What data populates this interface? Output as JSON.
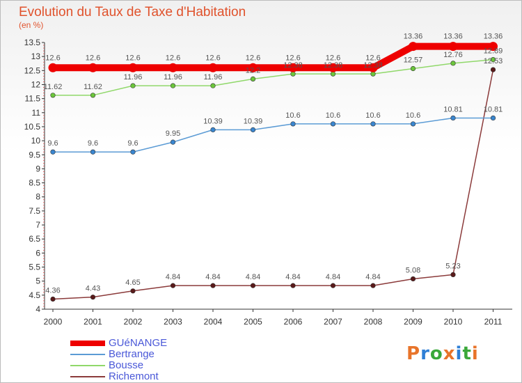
{
  "title": "Evolution du Taux de Taxe d'Habitation",
  "subtitle": "(en %)",
  "logo": {
    "text": "Proxiti",
    "colors": [
      "#e8742a",
      "#2f7fd6",
      "#3aa83a",
      "#e8742a",
      "#2f7fd6",
      "#3aa83a",
      "#e8742a"
    ]
  },
  "chart_data": {
    "type": "line",
    "x": [
      "2000",
      "2001",
      "2002",
      "2003",
      "2004",
      "2005",
      "2006",
      "2007",
      "2008",
      "2009",
      "2010",
      "2011"
    ],
    "ylim": [
      4,
      13.5
    ],
    "yticks": [
      "4",
      "4.5",
      "5",
      "5.5",
      "6",
      "6.5",
      "7",
      "7.5",
      "8",
      "8.5",
      "9",
      "9.5",
      "10",
      "10.5",
      "11",
      "11.5",
      "12",
      "12.5",
      "13",
      "13.5"
    ],
    "grid": false,
    "legend_position": "bottom-left",
    "series": [
      {
        "name": "GUéNANGE",
        "color": "#ee0000",
        "width": 10,
        "values": [
          12.6,
          12.6,
          12.6,
          12.6,
          12.6,
          12.6,
          12.6,
          12.6,
          12.6,
          13.36,
          13.36,
          13.36
        ],
        "labels": [
          "12.6",
          "12.6",
          "12.6",
          "12.6",
          "12.6",
          "12.6",
          "12.6",
          "12.6",
          "12.6",
          "13.36",
          "13.36",
          "13.36"
        ]
      },
      {
        "name": "Bertrange",
        "color": "#5b9bd5",
        "width": 1.5,
        "dot": "#3a86cf",
        "values": [
          9.6,
          9.6,
          9.6,
          9.95,
          10.39,
          10.39,
          10.6,
          10.6,
          10.6,
          10.6,
          10.81,
          10.81
        ],
        "labels": [
          "9.6",
          "9.6",
          "9.6",
          "9.95",
          "10.39",
          "10.39",
          "10.6",
          "10.6",
          "10.6",
          "10.6",
          "10.81",
          "10.81"
        ]
      },
      {
        "name": "Bousse",
        "color": "#90d86a",
        "width": 1.5,
        "dot": "#6cc63c",
        "values": [
          11.62,
          11.62,
          11.96,
          11.96,
          11.96,
          12.2,
          12.38,
          12.38,
          12.38,
          12.57,
          12.76,
          12.89
        ],
        "labels": [
          "11.62",
          "11.62",
          "11.96",
          "11.96",
          "11.96",
          "12.2",
          "12.38",
          "12.38",
          "12.38",
          "12.57",
          "12.76",
          "12.89"
        ]
      },
      {
        "name": "Richemont",
        "color": "#8b3a3a",
        "width": 1.5,
        "dot": "#5a1a1a",
        "values": [
          4.36,
          4.43,
          4.65,
          4.84,
          4.84,
          4.84,
          4.84,
          4.84,
          4.84,
          5.08,
          5.23,
          12.53
        ],
        "labels": [
          "4.36",
          "4.43",
          "4.65",
          "4.84",
          "4.84",
          "4.84",
          "4.84",
          "4.84",
          "4.84",
          "5.08",
          "5.23",
          "12.53"
        ]
      }
    ]
  }
}
